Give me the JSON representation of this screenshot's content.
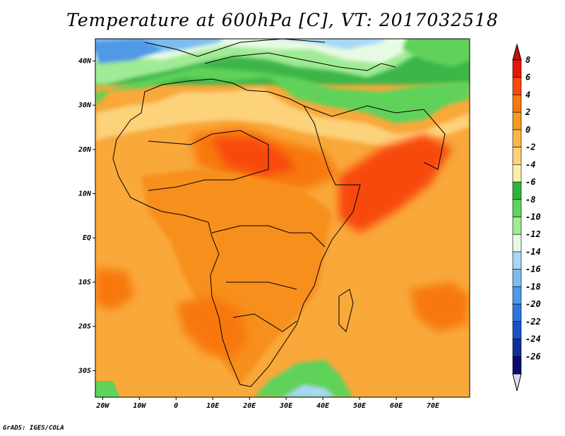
{
  "title": "Temperature at 600hPa [C], VT: 2017032518",
  "footer": "GrADS: IGES/COLA",
  "map": {
    "lon_ticks": [
      "20W",
      "10W",
      "0",
      "10E",
      "20E",
      "30E",
      "40E",
      "50E",
      "60E",
      "70E"
    ],
    "lat_ticks": [
      "40N",
      "30N",
      "20N",
      "10N",
      "EQ",
      "10S",
      "20S",
      "30S"
    ],
    "lon_range": [
      -22,
      80
    ],
    "lat_range": [
      -36,
      45
    ]
  },
  "colorbar": {
    "labels": [
      "8",
      "6",
      "4",
      "2",
      "0",
      "-2",
      "-4",
      "-6",
      "-8",
      "-10",
      "-12",
      "-14",
      "-16",
      "-18",
      "-20",
      "-22",
      "-24",
      "-26"
    ],
    "colors": [
      "#e31a0b",
      "#f8480f",
      "#f8780f",
      "#f89a1c",
      "#fbb54a",
      "#fcd27a",
      "#fcf0a8",
      "#2fb43a",
      "#61d25a",
      "#a0eb95",
      "#e7fbe4",
      "#a7d8f5",
      "#7cbcef",
      "#4f99e6",
      "#2b77dc",
      "#1a52c4",
      "#102f96",
      "#0a0a6e"
    ]
  },
  "regions": {
    "ocean_base": "#f9a83a",
    "land_base": "#f78f1b"
  }
}
